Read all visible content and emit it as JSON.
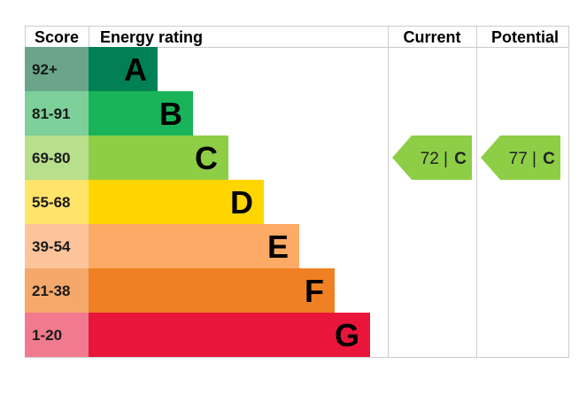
{
  "chart_data": {
    "type": "table",
    "headers": {
      "score": "Score",
      "rating": "Energy rating",
      "current": "Current",
      "potential": "Potential"
    },
    "bands": [
      {
        "letter": "A",
        "score": "92+",
        "color": "#008054",
        "score_color": "#6aa58a"
      },
      {
        "letter": "B",
        "score": "81-91",
        "color": "#19b459",
        "score_color": "#7dd09a"
      },
      {
        "letter": "C",
        "score": "69-80",
        "color": "#8dce46",
        "score_color": "#b8df8c"
      },
      {
        "letter": "D",
        "score": "55-68",
        "color": "#ffd500",
        "score_color": "#ffe36a"
      },
      {
        "letter": "E",
        "score": "39-54",
        "color": "#fcaa65",
        "score_color": "#fdc49b"
      },
      {
        "letter": "F",
        "score": "21-38",
        "color": "#ef8023",
        "score_color": "#f4a86c"
      },
      {
        "letter": "G",
        "score": "1-20",
        "color": "#e9153b",
        "score_color": "#f27a8e"
      }
    ],
    "current": {
      "value": 72,
      "band": "C",
      "label": "72 |",
      "color": "#8dce46"
    },
    "potential": {
      "value": 77,
      "band": "C",
      "label": "77 |",
      "color": "#8dce46"
    }
  }
}
